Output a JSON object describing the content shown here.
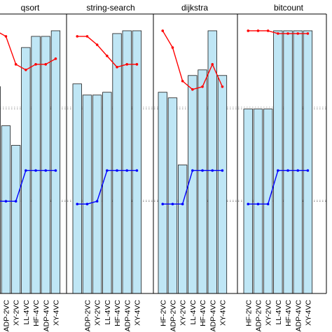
{
  "chart_data": {
    "type": "bar",
    "panels": [
      {
        "title": "qsort",
        "categories": [
          "",
          "ADP-2VC",
          "XY-2VC",
          "LL-4VC",
          "HF-4VC",
          "ADP-4VC",
          "XY-4VC"
        ],
        "bars": [
          0.74,
          0.6,
          0.53,
          0.88,
          0.92,
          0.92,
          0.94
        ],
        "red": [
          0.94,
          0.92,
          0.82,
          0.8,
          0.82,
          0.82,
          0.84
        ],
        "blue": [
          0.33,
          0.33,
          0.33,
          0.44,
          0.44,
          0.44,
          0.44
        ]
      },
      {
        "title": "string-search",
        "categories": [
          "",
          "ADP-2VC",
          "XY-2VC",
          "LL-4VC",
          "HF-4VC",
          "ADP-4VC",
          "XY-4VC"
        ],
        "bars": [
          0.75,
          0.71,
          0.71,
          0.72,
          0.93,
          0.94,
          0.94
        ],
        "red": [
          0.92,
          0.92,
          0.89,
          0.85,
          0.81,
          0.82,
          0.82
        ],
        "blue": [
          0.32,
          0.32,
          0.33,
          0.44,
          0.44,
          0.44,
          0.44
        ]
      },
      {
        "title": "dijkstra",
        "categories": [
          "HF-2VC",
          "ADP-2VC",
          "XY-2VC",
          "LL-4VC",
          "HF-4VC",
          "ADP-4VC",
          "XY-4VC"
        ],
        "bars": [
          0.72,
          0.7,
          0.46,
          0.78,
          0.8,
          0.94,
          0.78
        ],
        "red": [
          0.94,
          0.88,
          0.76,
          0.73,
          0.74,
          0.82,
          0.74
        ],
        "blue": [
          0.32,
          0.32,
          0.32,
          0.44,
          0.44,
          0.44,
          0.44
        ]
      },
      {
        "title": "bitcount",
        "categories": [
          "HF-2VC",
          "ADP-2VC",
          "XY-2VC",
          "LL-4VC",
          "HF-4VC",
          "ADP-4VC",
          "XY-4VC"
        ],
        "bars": [
          0.66,
          0.66,
          0.66,
          0.94,
          0.94,
          0.94,
          0.94
        ],
        "red": [
          0.94,
          0.94,
          0.94,
          0.93,
          0.93,
          0.93,
          0.93
        ],
        "blue": [
          0.32,
          0.32,
          0.32,
          0.44,
          0.44,
          0.44,
          0.44
        ]
      }
    ],
    "ylim": [
      0,
      1
    ],
    "grid": true,
    "colors": {
      "bar_fill": "#bfe6f5",
      "bar_stroke": "#1a1a1a",
      "red_line": "#ff0000",
      "blue_line": "#0000ff",
      "grid": "#555555"
    }
  }
}
